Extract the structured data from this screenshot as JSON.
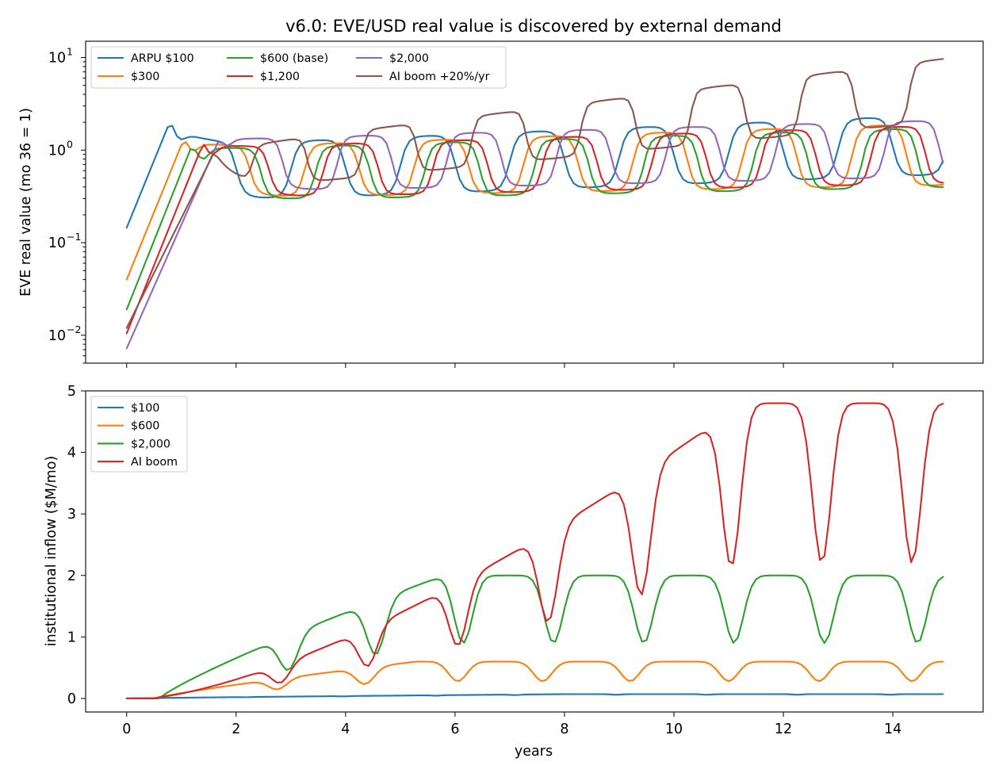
{
  "figure": {
    "title": "v6.0: EVE/USD real value is discovered by external demand"
  },
  "chart_data": [
    {
      "type": "line",
      "panel": "top",
      "ylabel": "EVE real value (mo 36 = 1)",
      "xlabel": "",
      "yscale": "log",
      "xlim": [
        -0.75,
        15.65
      ],
      "ylim": [
        0.005,
        15
      ],
      "yticks": [
        0.01,
        0.1,
        1,
        10
      ],
      "ytick_labels": [
        [
          "10",
          "−2"
        ],
        [
          "10",
          "−1"
        ],
        [
          "10",
          "0"
        ],
        [
          "10",
          "1"
        ]
      ],
      "xticks": [
        0,
        2,
        4,
        6,
        8,
        10,
        12,
        14
      ],
      "show_xtick_labels": false,
      "grid": false,
      "legend_position": "upper-left",
      "legend_columns": 3,
      "series": [
        {
          "name": "ARPU $100",
          "color": "#1f77b4",
          "kind": "osc",
          "start": 0.145,
          "peakT": 0.8,
          "peak": 2.1,
          "period": 2.0,
          "phase": 1.0,
          "trough": 0.27,
          "trough_end": 0.55,
          "crest": 1.1,
          "crest_end": 2.4,
          "w": 0.45
        },
        {
          "name": "$300",
          "color": "#ff7f0e",
          "kind": "osc",
          "start": 0.04,
          "peakT": 1.05,
          "peak": 1.35,
          "period": 2.0,
          "phase": 1.25,
          "trough": 0.3,
          "trough_end": 0.42,
          "crest": 1.05,
          "crest_end": 1.95,
          "w": 0.5
        },
        {
          "name": "$600 (base)",
          "color": "#2ca02c",
          "kind": "osc",
          "start": 0.019,
          "peakT": 1.2,
          "peak": 1.15,
          "period": 2.0,
          "phase": 1.45,
          "trough": 0.28,
          "trough_end": 0.4,
          "crest": 1.0,
          "crest_end": 1.75,
          "w": 0.55
        },
        {
          "name": "$1,200",
          "color": "#d62728",
          "kind": "osc",
          "start": 0.0105,
          "peakT": 1.4,
          "peak": 1.2,
          "period": 2.0,
          "phase": 1.6,
          "trough": 0.3,
          "trough_end": 0.44,
          "crest": 1.05,
          "crest_end": 1.85,
          "w": 0.55
        },
        {
          "name": "$2,000",
          "color": "#9467bd",
          "kind": "osc",
          "start": 0.0072,
          "peakT": 1.7,
          "peak": 1.35,
          "period": 2.0,
          "phase": 1.85,
          "trough": 0.35,
          "trough_end": 0.52,
          "crest": 1.3,
          "crest_end": 2.1,
          "w": 0.6
        },
        {
          "name": "AI boom +20%/yr",
          "color": "#8c564b",
          "kind": "boom",
          "start": 0.012,
          "peakT": 1.6,
          "peak": 0.95,
          "period": 2.0,
          "phase": 2.3,
          "trough": 0.36,
          "trough_end": 2.1,
          "crest": 1.05,
          "crest_end": 9.8,
          "w": 0.85
        }
      ]
    },
    {
      "type": "line",
      "panel": "bottom",
      "ylabel": "institutional inflow ($M/mo)",
      "xlabel": "years",
      "yscale": "linear",
      "xlim": [
        -0.75,
        15.65
      ],
      "ylim": [
        -0.22,
        5.0
      ],
      "yticks": [
        0,
        1,
        2,
        3,
        4,
        5
      ],
      "xticks": [
        0,
        2,
        4,
        6,
        8,
        10,
        12,
        14
      ],
      "grid": false,
      "legend_position": "upper-left",
      "legend_columns": 1,
      "series": [
        {
          "name": "$100",
          "color": "#1f77b4",
          "kind": "cap",
          "cap": 0.07,
          "ramp_start": 0.0,
          "dips": [
            2.2,
            3.95,
            5.65,
            7.1,
            8.95,
            10.6,
            12.25,
            13.95
          ],
          "dip_depth": 0.01,
          "dip_width": 0.15
        },
        {
          "name": "$600",
          "color": "#ff7f0e",
          "kind": "cap",
          "cap": 0.6,
          "ramp_start": 0.5,
          "dips": [
            2.75,
            4.35,
            6.05,
            7.6,
            9.2,
            11.0,
            12.65,
            14.35
          ],
          "dip_depth": 0.32,
          "dip_width": 0.3
        },
        {
          "name": "$2,000",
          "color": "#2ca02c",
          "kind": "cap",
          "cap": 2.0,
          "ramp_start": 0.6,
          "dips": [
            2.95,
            4.55,
            6.15,
            7.8,
            9.45,
            11.1,
            12.75,
            14.45
          ],
          "dip_depth": 1.1,
          "dip_width": 0.3
        },
        {
          "name": "AI boom",
          "color": "#d62728",
          "kind": "boomflow",
          "cap": 4.8,
          "ramp_start": 0.55,
          "dips": [
            2.8,
            4.4,
            6.05,
            7.7,
            9.4,
            11.05,
            12.7,
            14.35
          ],
          "dip_depth": 2.6,
          "dip_width": 0.3
        }
      ]
    }
  ]
}
